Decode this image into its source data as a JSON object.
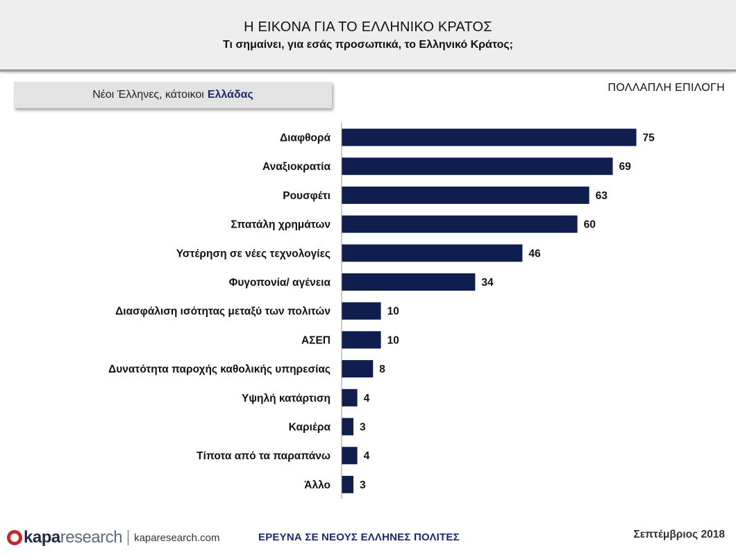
{
  "header": {
    "title": "Η ΕΙΚΟΝΑ ΓΙΑ ΤΟ ΕΛΛΗΝΙΚΟ ΚΡΑΤΟΣ",
    "subtitle": "Τι σημαίνει, για εσάς προσωπικά, το Ελληνικό Κράτος;"
  },
  "segment": {
    "prefix": "Νέοι Έλληνες, κάτοικοι",
    "accent": "Ελλάδας"
  },
  "note": "ΠΟΛΛΑΠΛΗ ΕΠΙΛΟΓΗ",
  "chart_data": {
    "type": "bar",
    "orientation": "horizontal",
    "categories": [
      "Διαφθορά",
      "Αναξιοκρατία",
      "Ρουσφέτι",
      "Σπατάλη χρημάτων",
      "Υστέρηση σε νέες τεχνολογίες",
      "Φυγοπονία/ αγένεια",
      "Διασφάλιση ισότητας μεταξύ των πολιτών",
      "ΑΣΕΠ",
      "Δυνατότητα παροχής καθολικής υπηρεσίας",
      "Υψηλή κατάρτιση",
      "Καριέρα",
      "Τίποτα από τα παραπάνω",
      "Άλλο"
    ],
    "values": [
      75,
      69,
      63,
      60,
      46,
      34,
      10,
      10,
      8,
      4,
      3,
      4,
      3
    ],
    "bar_color": "#0f1e4e",
    "xlim": [
      0,
      80
    ],
    "grid": false,
    "legend": false
  },
  "footer": {
    "logo_kapa": "kapa",
    "logo_research": "research",
    "website": "kaparesearch.com",
    "survey": "ΕΡΕΥΝΑ ΣΕ ΝΕΟΥΣ ΕΛΛΗΝΕΣ ΠΟΛΙΤΕΣ",
    "date": "Σεπτέμβριος 2018"
  }
}
